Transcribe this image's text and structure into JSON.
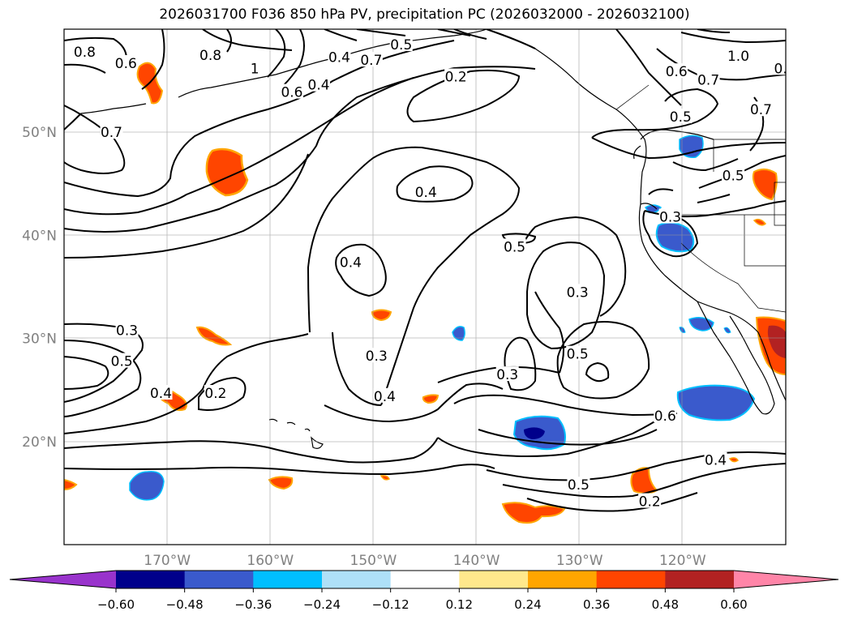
{
  "title": "2026031700 F036 850 hPa PV, precipitation PC (2026032000 - 2026032100)",
  "map": {
    "lon_range": [
      -180,
      -110
    ],
    "lat_range": [
      10,
      60
    ],
    "lat_ticks": [
      {
        "value": 50,
        "label": "50°N"
      },
      {
        "value": 40,
        "label": "40°N"
      },
      {
        "value": 30,
        "label": "30°N"
      },
      {
        "value": 20,
        "label": "20°N"
      }
    ],
    "lon_ticks": [
      {
        "value": -170,
        "label": "170°W"
      },
      {
        "value": -160,
        "label": "160°W"
      },
      {
        "value": -150,
        "label": "150°W"
      },
      {
        "value": -140,
        "label": "140°W"
      },
      {
        "value": -130,
        "label": "130°W"
      },
      {
        "value": -120,
        "label": "120°W"
      }
    ],
    "grid": true,
    "contour_labels": [
      {
        "text": "0.8",
        "lon": -178,
        "lat": 57.8
      },
      {
        "text": "0.6",
        "lon": -174,
        "lat": 56.7
      },
      {
        "text": "0.8",
        "lon": -165.8,
        "lat": 57.5
      },
      {
        "text": "0.7",
        "lon": -175.4,
        "lat": 50
      },
      {
        "text": "1",
        "lon": -161.5,
        "lat": 56.2
      },
      {
        "text": "0.6",
        "lon": -157.9,
        "lat": 53.9
      },
      {
        "text": "0.4",
        "lon": -155.3,
        "lat": 54.6
      },
      {
        "text": "0.4",
        "lon": -153.3,
        "lat": 57.3
      },
      {
        "text": "0.5",
        "lon": -147.3,
        "lat": 58.5
      },
      {
        "text": "0.7",
        "lon": -150.2,
        "lat": 57
      },
      {
        "text": "0.2",
        "lon": -142,
        "lat": 55.4
      },
      {
        "text": "0.6",
        "lon": -120.6,
        "lat": 55.9
      },
      {
        "text": "0.7",
        "lon": -117.5,
        "lat": 55.1
      },
      {
        "text": "1.0",
        "lon": -114.6,
        "lat": 57.4
      },
      {
        "text": "0.",
        "lon": -110.5,
        "lat": 56.2
      },
      {
        "text": "0.7",
        "lon": -112.4,
        "lat": 52.2
      },
      {
        "text": "0.5",
        "lon": -120.2,
        "lat": 51.5
      },
      {
        "text": "0.5",
        "lon": -115.1,
        "lat": 45.8
      },
      {
        "text": "0.4",
        "lon": -144.9,
        "lat": 44.2
      },
      {
        "text": "0.5",
        "lon": -136.3,
        "lat": 38.9
      },
      {
        "text": "0.4",
        "lon": -152.2,
        "lat": 37.4
      },
      {
        "text": "0.3",
        "lon": -121.2,
        "lat": 41.8
      },
      {
        "text": "0.3",
        "lon": -130.2,
        "lat": 34.5
      },
      {
        "text": "0.3",
        "lon": -173.9,
        "lat": 30.8
      },
      {
        "text": "0.5",
        "lon": -174.4,
        "lat": 27.8
      },
      {
        "text": "0.4",
        "lon": -170.6,
        "lat": 24.7
      },
      {
        "text": "0.2",
        "lon": -165.3,
        "lat": 24.7
      },
      {
        "text": "0.3",
        "lon": -149.7,
        "lat": 28.3
      },
      {
        "text": "0.4",
        "lon": -148.9,
        "lat": 24.4
      },
      {
        "text": "0.3",
        "lon": -137,
        "lat": 26.5
      },
      {
        "text": "0.5",
        "lon": -130.2,
        "lat": 28.5
      },
      {
        "text": "0.6",
        "lon": -121.7,
        "lat": 22.5
      },
      {
        "text": "0.4",
        "lon": -116.8,
        "lat": 18.2
      },
      {
        "text": "0.5",
        "lon": -130.1,
        "lat": 15.8
      },
      {
        "text": "0.2",
        "lon": -123.2,
        "lat": 14.2
      }
    ]
  },
  "colorbar": {
    "ticks": [
      "−0.60",
      "−0.48",
      "−0.36",
      "−0.24",
      "−0.12",
      "0.12",
      "0.24",
      "0.36",
      "0.48",
      "0.60"
    ],
    "colors": [
      "#9933cc",
      "#00008b",
      "#3a5acc",
      "#00bfff",
      "#aee0f8",
      "#ffffff",
      "#ffe88c",
      "#ffa500",
      "#ff4500",
      "#b22222",
      "#ff85a8"
    ]
  }
}
